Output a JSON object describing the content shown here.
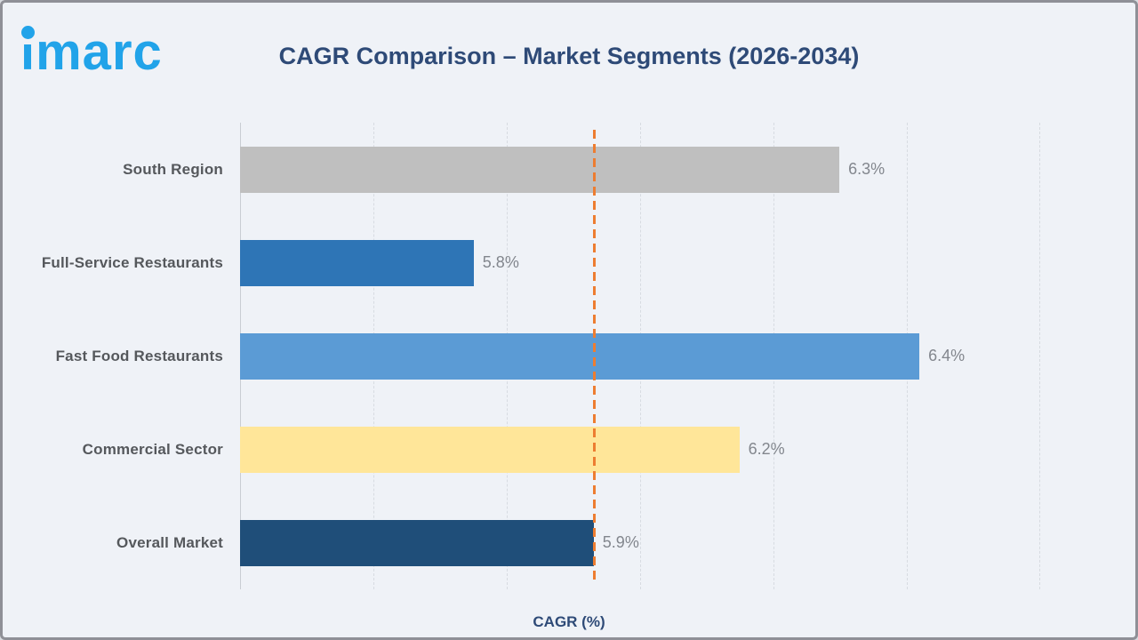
{
  "logo": {
    "text": "imarc",
    "brand_color": "#21A3E9"
  },
  "colors": {
    "background": "#EFF2F7",
    "title_text": "#2E4A77",
    "category_text": "#55585C",
    "value_text": "#82868D",
    "gridline": "#D7DBE1",
    "reference_line": "#ED7D31"
  },
  "chart_data": {
    "type": "bar",
    "orientation": "horizontal",
    "title": "CAGR Comparison – Market Segments (2026-2034)",
    "xlabel": "CAGR (%)",
    "ylabel": "",
    "categories": [
      "South Region",
      "Full-Service Restaurants",
      "Fast Food Restaurants",
      "Commercial Sector",
      "Overall Market"
    ],
    "values": [
      6.3,
      5.8,
      6.4,
      6.2,
      5.9
    ],
    "bars": [
      {
        "label": "South Region",
        "value": 6.3,
        "display": "6.3%",
        "color": "#BFBFBF",
        "length_pct": 74.9
      },
      {
        "label": "Full-Service Restaurants",
        "value": 5.8,
        "display": "5.8%",
        "color": "#2E75B6",
        "length_pct": 29.2
      },
      {
        "label": "Fast Food Restaurants",
        "value": 6.4,
        "display": "6.4%",
        "color": "#5B9BD5",
        "length_pct": 84.9
      },
      {
        "label": "Commercial Sector",
        "value": 6.2,
        "display": "6.2%",
        "color": "#FFE699",
        "length_pct": 62.4
      },
      {
        "label": "Overall Market",
        "value": 5.9,
        "display": "5.9%",
        "color": "#1F4E79",
        "length_pct": 44.2
      }
    ],
    "reference_line": {
      "value": 5.9,
      "color": "#ED7D31",
      "style": "dashed",
      "position_pct": 44.2
    },
    "grid": {
      "visible": true,
      "style": "dashed",
      "vertical_divisions": 6
    },
    "legend": null,
    "axis_tick_labels_shown": false
  }
}
